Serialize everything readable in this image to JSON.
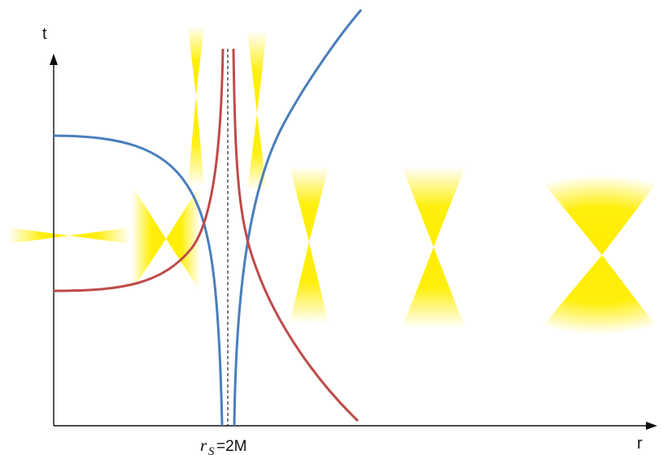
{
  "axes": {
    "x_label": "r",
    "y_label": "t"
  },
  "horizon_label": {
    "symbol": "r",
    "subscript": "S",
    "equals": "=2M"
  },
  "colors": {
    "outgoing_curve": "#4a7ebb",
    "ingoing_curve": "#be4b48",
    "light_cone": "#ffee00",
    "axis": "#111111",
    "horizon_line": "#111111"
  },
  "light_cones": [
    {
      "region": "far-inside",
      "shape": "horizontal-narrow"
    },
    {
      "region": "inside-near",
      "shape": "horizontal-wide"
    },
    {
      "region": "near-horizon-left",
      "shape": "vertical-thin"
    },
    {
      "region": "near-horizon-right",
      "shape": "vertical-thin"
    },
    {
      "region": "outside-1",
      "shape": "vertical-narrow"
    },
    {
      "region": "outside-2",
      "shape": "vertical-medium"
    },
    {
      "region": "far-outside",
      "shape": "vertical-wide"
    }
  ]
}
